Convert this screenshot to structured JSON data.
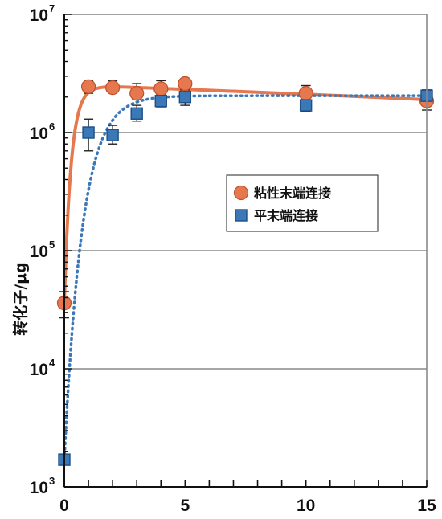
{
  "chart_data": {
    "type": "scatter",
    "title": "",
    "xlabel": "",
    "ylabel": "转化子/μg",
    "xlim": [
      0,
      15
    ],
    "ylim": [
      1000,
      10000000
    ],
    "yscale": "log",
    "x_ticks": [
      0,
      5,
      10,
      15
    ],
    "y_ticks": [
      {
        "base": "10",
        "exp": "3",
        "value": 1000
      },
      {
        "base": "10",
        "exp": "4",
        "value": 10000
      },
      {
        "base": "10",
        "exp": "5",
        "value": 100000
      },
      {
        "base": "10",
        "exp": "6",
        "value": 1000000
      },
      {
        "base": "10",
        "exp": "7",
        "value": 10000000
      }
    ],
    "grid": "horizontal",
    "legend_position": "center-right",
    "series": [
      {
        "name": "粘性末端连接",
        "marker": "circle",
        "color": "#e5784f",
        "line_style": "solid",
        "x": [
          0,
          1,
          2,
          3,
          4,
          5,
          10,
          15
        ],
        "y": [
          36000,
          2450000,
          2400000,
          2150000,
          2350000,
          2600000,
          2150000,
          1850000
        ],
        "err_low": [
          27000,
          2150000,
          2150000,
          1900000,
          2100000,
          2300000,
          1850000,
          1550000
        ],
        "err_high": [
          45000,
          2750000,
          2750000,
          2600000,
          2750000,
          2800000,
          2500000,
          2200000
        ],
        "fit": {
          "x0": 0,
          "y0": 36000,
          "plateau": 2450000,
          "slope_end": 1900000,
          "k": 3.6
        }
      },
      {
        "name": "平末端连接",
        "marker": "square",
        "color": "#3a78b7",
        "line_style": "dotted",
        "x": [
          0,
          1,
          2,
          3,
          4,
          5,
          10,
          15
        ],
        "y": [
          1700,
          1000000,
          950000,
          1450000,
          1850000,
          2000000,
          1700000,
          2050000
        ],
        "err_low": [
          1700,
          700000,
          800000,
          1250000,
          1650000,
          1700000,
          1500000,
          1800000
        ],
        "err_high": [
          1700,
          1300000,
          1150000,
          1700000,
          2050000,
          2300000,
          1950000,
          2300000
        ],
        "fit": {
          "x0": 0,
          "y0": 1700,
          "plateau": 2050000,
          "k": 1.35
        }
      }
    ]
  }
}
